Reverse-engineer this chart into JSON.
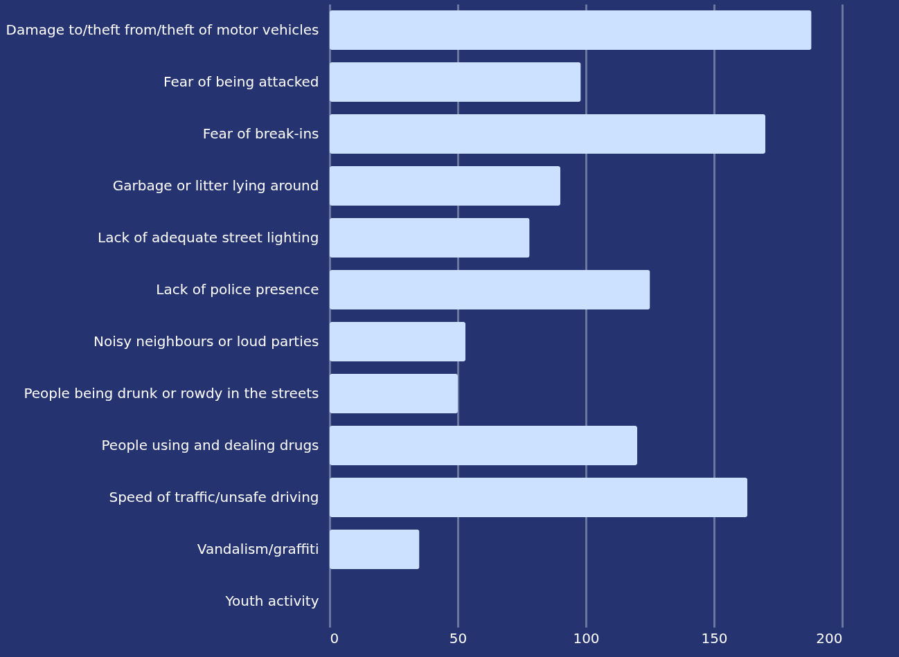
{
  "chart_data": {
    "type": "bar",
    "orientation": "horizontal",
    "categories": [
      "Damage to/theft from/theft of motor vehicles",
      "Fear of being attacked",
      "Fear of break-ins",
      "Garbage or litter lying around",
      "Lack of adequate street lighting",
      "Lack of police presence",
      "Noisy neighbours or loud parties",
      "People being drunk or rowdy in the streets",
      "People using and dealing drugs",
      "Speed of traffic/unsafe driving",
      "Vandalism/graffiti",
      "Youth activity"
    ],
    "values": [
      188,
      98,
      170,
      90,
      78,
      125,
      53,
      50,
      120,
      163,
      35,
      0
    ],
    "color": "#cce0ff",
    "xlim": [
      0,
      200
    ],
    "xticks": [
      0,
      50,
      100,
      150,
      200
    ],
    "grid": true
  }
}
